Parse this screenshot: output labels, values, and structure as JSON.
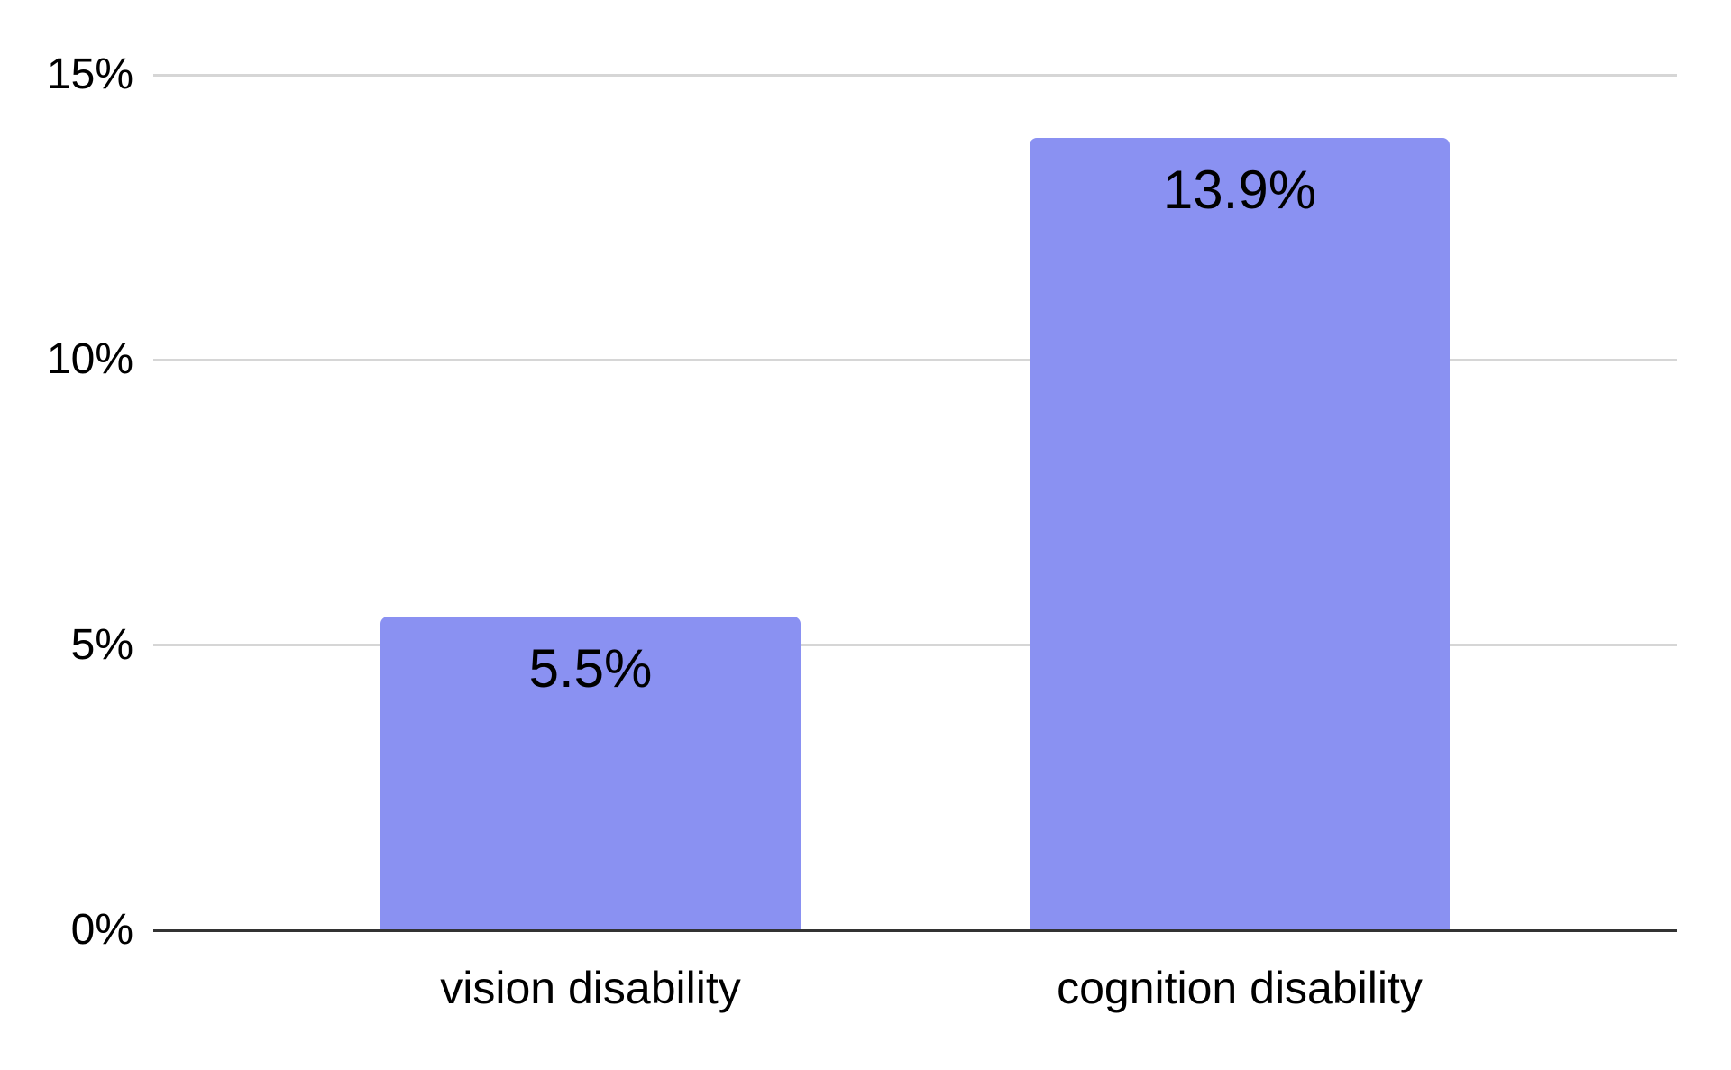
{
  "chart_data": {
    "type": "bar",
    "title": "",
    "categories": [
      "vision disability",
      "cognition disability"
    ],
    "values": [
      5.5,
      13.9
    ],
    "data_labels": [
      "5.5%",
      "13.9%"
    ],
    "y_ticks": [
      {
        "value": 0,
        "label": "0%"
      },
      {
        "value": 5,
        "label": "5%"
      },
      {
        "value": 10,
        "label": "10%"
      },
      {
        "value": 15,
        "label": "15%"
      }
    ],
    "ylim": [
      0,
      15
    ],
    "xlabel": "",
    "ylabel": "",
    "grid": "horizontal-only",
    "legend": "none",
    "colors": {
      "bar_fill": "#8A91F2",
      "gridline": "#d6d6d6",
      "axis_line": "#333333",
      "text": "#000000",
      "background": "#ffffff"
    }
  }
}
